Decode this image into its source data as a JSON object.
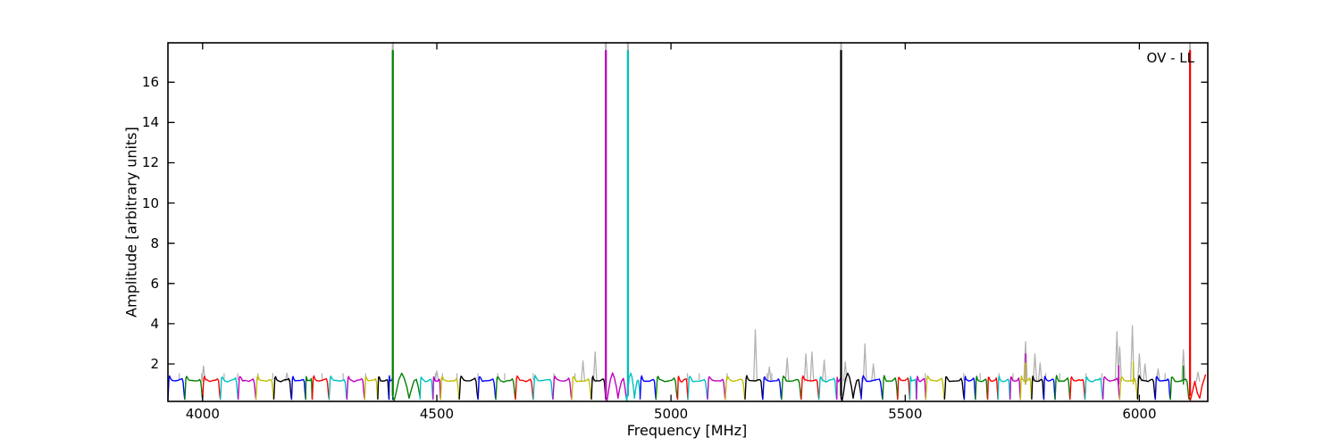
{
  "figure": {
    "annotation": "OV - LL",
    "background_color": "#ffffff"
  },
  "chart_data": {
    "type": "line",
    "title": "",
    "xlabel": "Frequency [MHz]",
    "ylabel": "Amplitude [arbitrary units]",
    "annotation": "OV - LL",
    "grid": false,
    "legend": "none",
    "xlim": [
      3926,
      6146
    ],
    "ylim": [
      0.14,
      17.96
    ],
    "xticks": [
      4000,
      4500,
      5000,
      5500,
      6000
    ],
    "yticks": [
      2,
      4,
      6,
      8,
      10,
      12,
      14,
      16
    ],
    "colors": {
      "b": "#0000ff",
      "g": "#008000",
      "r": "#ff0000",
      "c": "#00bfbf",
      "m": "#bf00bf",
      "y": "#bfbf00",
      "k": "#000000",
      "gray": "#b3b3b3",
      "axis": "#000000"
    },
    "baseline_level": 1.2,
    "bands": [
      [
        "b",
        3926,
        3962,
        "n"
      ],
      [
        "g",
        3962,
        4000,
        "n"
      ],
      [
        "r",
        4000,
        4038,
        "n"
      ],
      [
        "c",
        4038,
        4076,
        "n"
      ],
      [
        "m",
        4076,
        4114,
        "n"
      ],
      [
        "y",
        4114,
        4152,
        "n"
      ],
      [
        "k",
        4152,
        4190,
        "n"
      ],
      [
        "b",
        4190,
        4220,
        "n"
      ],
      [
        "g",
        4220,
        4234,
        "n"
      ],
      [
        "r",
        4234,
        4270,
        "n"
      ],
      [
        "c",
        4270,
        4308,
        "n"
      ],
      [
        "m",
        4308,
        4346,
        "n"
      ],
      [
        "y",
        4346,
        4374,
        "n"
      ],
      [
        "k",
        4374,
        4398,
        "n"
      ],
      [
        "b",
        4398,
        4406,
        "n"
      ],
      [
        "g",
        4406,
        4464,
        "w"
      ],
      [
        "c",
        4464,
        4492,
        "n"
      ],
      [
        "m",
        4492,
        4508,
        "n"
      ],
      [
        "y",
        4508,
        4548,
        "n"
      ],
      [
        "k",
        4548,
        4588,
        "n"
      ],
      [
        "b",
        4588,
        4626,
        "n"
      ],
      [
        "g",
        4626,
        4668,
        "n"
      ],
      [
        "r",
        4668,
        4706,
        "n"
      ],
      [
        "c",
        4706,
        4748,
        "n"
      ],
      [
        "m",
        4748,
        4788,
        "n"
      ],
      [
        "y",
        4788,
        4830,
        "n"
      ],
      [
        "k",
        4830,
        4861,
        "n"
      ],
      [
        "m",
        4861,
        4904,
        "w"
      ],
      [
        "c",
        4904,
        4934,
        "w"
      ],
      [
        "b",
        4934,
        4968,
        "n"
      ],
      [
        "g",
        4968,
        5014,
        "n"
      ],
      [
        "r",
        5014,
        5036,
        "n"
      ],
      [
        "c",
        5036,
        5078,
        "n"
      ],
      [
        "m",
        5078,
        5116,
        "n"
      ],
      [
        "y",
        5116,
        5158,
        "n"
      ],
      [
        "k",
        5158,
        5196,
        "n"
      ],
      [
        "b",
        5196,
        5236,
        "n"
      ],
      [
        "g",
        5236,
        5278,
        "n"
      ],
      [
        "r",
        5278,
        5316,
        "n"
      ],
      [
        "c",
        5316,
        5354,
        "n"
      ],
      [
        "m",
        5354,
        5363,
        "n"
      ],
      [
        "k",
        5363,
        5406,
        "w"
      ],
      [
        "b",
        5406,
        5452,
        "n"
      ],
      [
        "g",
        5452,
        5484,
        "n"
      ],
      [
        "r",
        5484,
        5510,
        "n"
      ],
      [
        "c",
        5510,
        5524,
        "n"
      ],
      [
        "m",
        5524,
        5544,
        "n"
      ],
      [
        "y",
        5544,
        5584,
        "n"
      ],
      [
        "k",
        5584,
        5626,
        "n"
      ],
      [
        "b",
        5626,
        5650,
        "n"
      ],
      [
        "g",
        5650,
        5676,
        "n"
      ],
      [
        "r",
        5676,
        5698,
        "n"
      ],
      [
        "c",
        5698,
        5724,
        "n"
      ],
      [
        "m",
        5724,
        5746,
        "n"
      ],
      [
        "y",
        5746,
        5770,
        "n"
      ],
      [
        "k",
        5770,
        5796,
        "n"
      ],
      [
        "b",
        5796,
        5820,
        "n"
      ],
      [
        "g",
        5820,
        5852,
        "n"
      ],
      [
        "r",
        5852,
        5884,
        "n"
      ],
      [
        "c",
        5884,
        5922,
        "n"
      ],
      [
        "m",
        5922,
        5958,
        "n"
      ],
      [
        "y",
        5958,
        5996,
        "n"
      ],
      [
        "k",
        5996,
        6034,
        "n"
      ],
      [
        "b",
        6034,
        6066,
        "n"
      ],
      [
        "g",
        6066,
        6106,
        "n"
      ],
      [
        "r",
        6106,
        6141,
        "e"
      ]
    ],
    "tall_spikes": [
      {
        "color": "g",
        "f": 4406
      },
      {
        "color": "m",
        "f": 4861
      },
      {
        "color": "c",
        "f": 4908
      },
      {
        "color": "k",
        "f": 5363
      },
      {
        "color": "r",
        "f": 6108
      }
    ],
    "small_spikes": [
      {
        "color": "m",
        "f": 5757,
        "a": 2.5
      },
      {
        "color": "y",
        "f": 5757,
        "a": 2.05
      },
      {
        "color": "m",
        "f": 5956,
        "a": 1.9
      },
      {
        "color": "y",
        "f": 5987,
        "a": 2.1
      },
      {
        "color": "g",
        "f": 6094,
        "a": 1.9
      }
    ],
    "gray_spikes": [
      [
        4002,
        1.9
      ],
      [
        4180,
        1.55
      ],
      [
        4500,
        1.65
      ],
      [
        4812,
        2.15
      ],
      [
        4838,
        2.6
      ],
      [
        5180,
        3.7
      ],
      [
        5210,
        1.85
      ],
      [
        5248,
        2.3
      ],
      [
        5288,
        2.5
      ],
      [
        5301,
        2.6
      ],
      [
        5327,
        2.2
      ],
      [
        5372,
        2.1
      ],
      [
        5414,
        3.0
      ],
      [
        5432,
        2.0
      ],
      [
        5757,
        3.1
      ],
      [
        5777,
        2.5
      ],
      [
        5788,
        2.05
      ],
      [
        5952,
        3.6
      ],
      [
        5958,
        2.85
      ],
      [
        5985,
        3.9
      ],
      [
        6000,
        2.5
      ],
      [
        6012,
        2.0
      ],
      [
        6040,
        1.75
      ],
      [
        6094,
        2.7
      ],
      [
        6125,
        1.6
      ]
    ],
    "gray_caps": [
      3950,
      3998,
      4046,
      4075,
      4118,
      4150,
      4255,
      4300,
      4348,
      4497,
      4512,
      4543,
      4588,
      4630,
      4645,
      4706,
      4750,
      4795,
      5035,
      5060,
      5120,
      5205,
      5215,
      5543,
      5625,
      5660,
      5700,
      5730,
      5800,
      5830,
      5886,
      5920,
      6038,
      6055
    ]
  }
}
